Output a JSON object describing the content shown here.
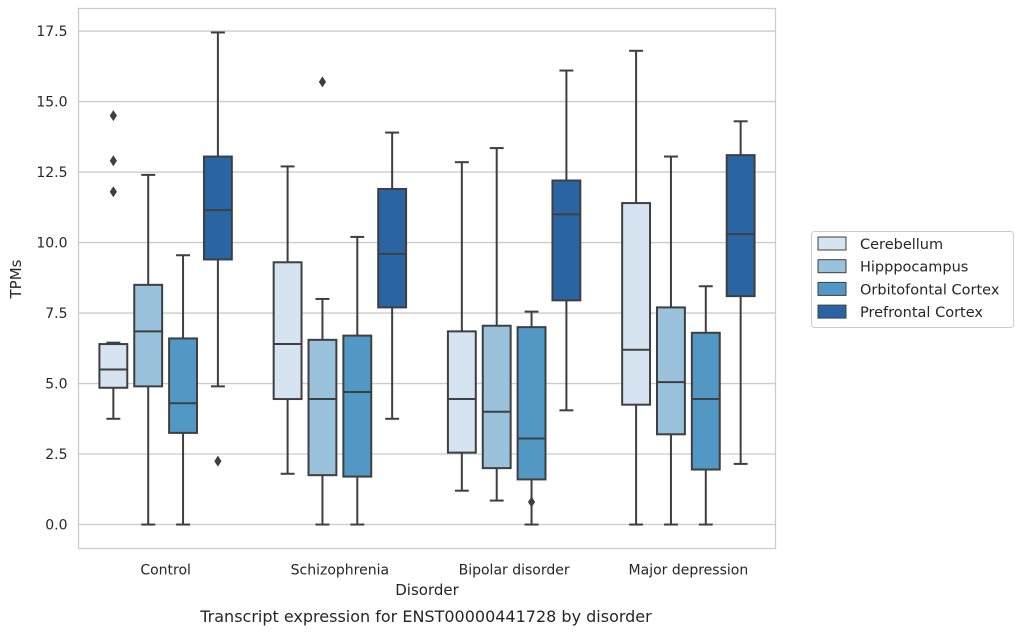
{
  "chart_data": {
    "type": "box",
    "caption": "Transcript expression for ENST00000441728 by disorder",
    "xlabel": "Disorder",
    "ylabel": "TPMs",
    "ylim": [
      -0.85,
      18.3
    ],
    "yticks": [
      "0.0",
      "2.5",
      "5.0",
      "7.5",
      "10.0",
      "12.5",
      "15.0",
      "17.5"
    ],
    "grid": "horizontal",
    "legend_position": "right",
    "categories": [
      "Control",
      "Schizophrenia",
      "Bipolar disorder",
      "Major depression"
    ],
    "series": [
      {
        "name": "Cerebellum",
        "color": "#d6e4f1",
        "boxes": [
          {
            "whislo": 3.75,
            "q1": 4.85,
            "med": 5.5,
            "q3": 6.4,
            "whishi": 6.45,
            "fliers": [
              14.5,
              12.9,
              11.8
            ]
          },
          {
            "whislo": 1.8,
            "q1": 4.45,
            "med": 6.4,
            "q3": 9.3,
            "whishi": 12.7,
            "fliers": []
          },
          {
            "whislo": 1.2,
            "q1": 2.55,
            "med": 4.45,
            "q3": 6.85,
            "whishi": 12.85,
            "fliers": []
          },
          {
            "whislo": 0.0,
            "q1": 4.25,
            "med": 6.2,
            "q3": 11.4,
            "whishi": 16.8,
            "fliers": []
          }
        ]
      },
      {
        "name": "Hipppocampus",
        "color": "#9ac2dc",
        "boxes": [
          {
            "whislo": 0.0,
            "q1": 4.9,
            "med": 6.85,
            "q3": 8.5,
            "whishi": 12.4,
            "fliers": []
          },
          {
            "whislo": 0.0,
            "q1": 1.75,
            "med": 4.45,
            "q3": 6.55,
            "whishi": 8.0,
            "fliers": [
              15.7
            ]
          },
          {
            "whislo": 0.85,
            "q1": 2.0,
            "med": 4.0,
            "q3": 7.05,
            "whishi": 13.35,
            "fliers": []
          },
          {
            "whislo": 0.0,
            "q1": 3.2,
            "med": 5.05,
            "q3": 7.7,
            "whishi": 13.05,
            "fliers": []
          }
        ]
      },
      {
        "name": "Orbitofontal Cortex",
        "color": "#5298c5",
        "boxes": [
          {
            "whislo": 0.0,
            "q1": 3.25,
            "med": 4.3,
            "q3": 6.6,
            "whishi": 9.55,
            "fliers": []
          },
          {
            "whislo": 0.0,
            "q1": 1.7,
            "med": 4.7,
            "q3": 6.7,
            "whishi": 10.2,
            "fliers": []
          },
          {
            "whislo": 0.0,
            "q1": 1.6,
            "med": 3.05,
            "q3": 7.0,
            "whishi": 7.55,
            "fliers": [
              0.8
            ]
          },
          {
            "whislo": 0.0,
            "q1": 1.95,
            "med": 4.45,
            "q3": 6.8,
            "whishi": 8.45,
            "fliers": []
          }
        ]
      },
      {
        "name": "Prefrontal Cortex",
        "color": "#2a65a3",
        "boxes": [
          {
            "whislo": 4.9,
            "q1": 9.4,
            "med": 11.15,
            "q3": 13.05,
            "whishi": 17.45,
            "fliers": [
              2.25
            ]
          },
          {
            "whislo": 3.75,
            "q1": 7.7,
            "med": 9.6,
            "q3": 11.9,
            "whishi": 13.9,
            "fliers": []
          },
          {
            "whislo": 4.05,
            "q1": 7.95,
            "med": 11.0,
            "q3": 12.2,
            "whishi": 16.1,
            "fliers": []
          },
          {
            "whislo": 2.15,
            "q1": 8.1,
            "med": 10.3,
            "q3": 13.1,
            "whishi": 14.3,
            "fliers": []
          }
        ]
      }
    ]
  }
}
